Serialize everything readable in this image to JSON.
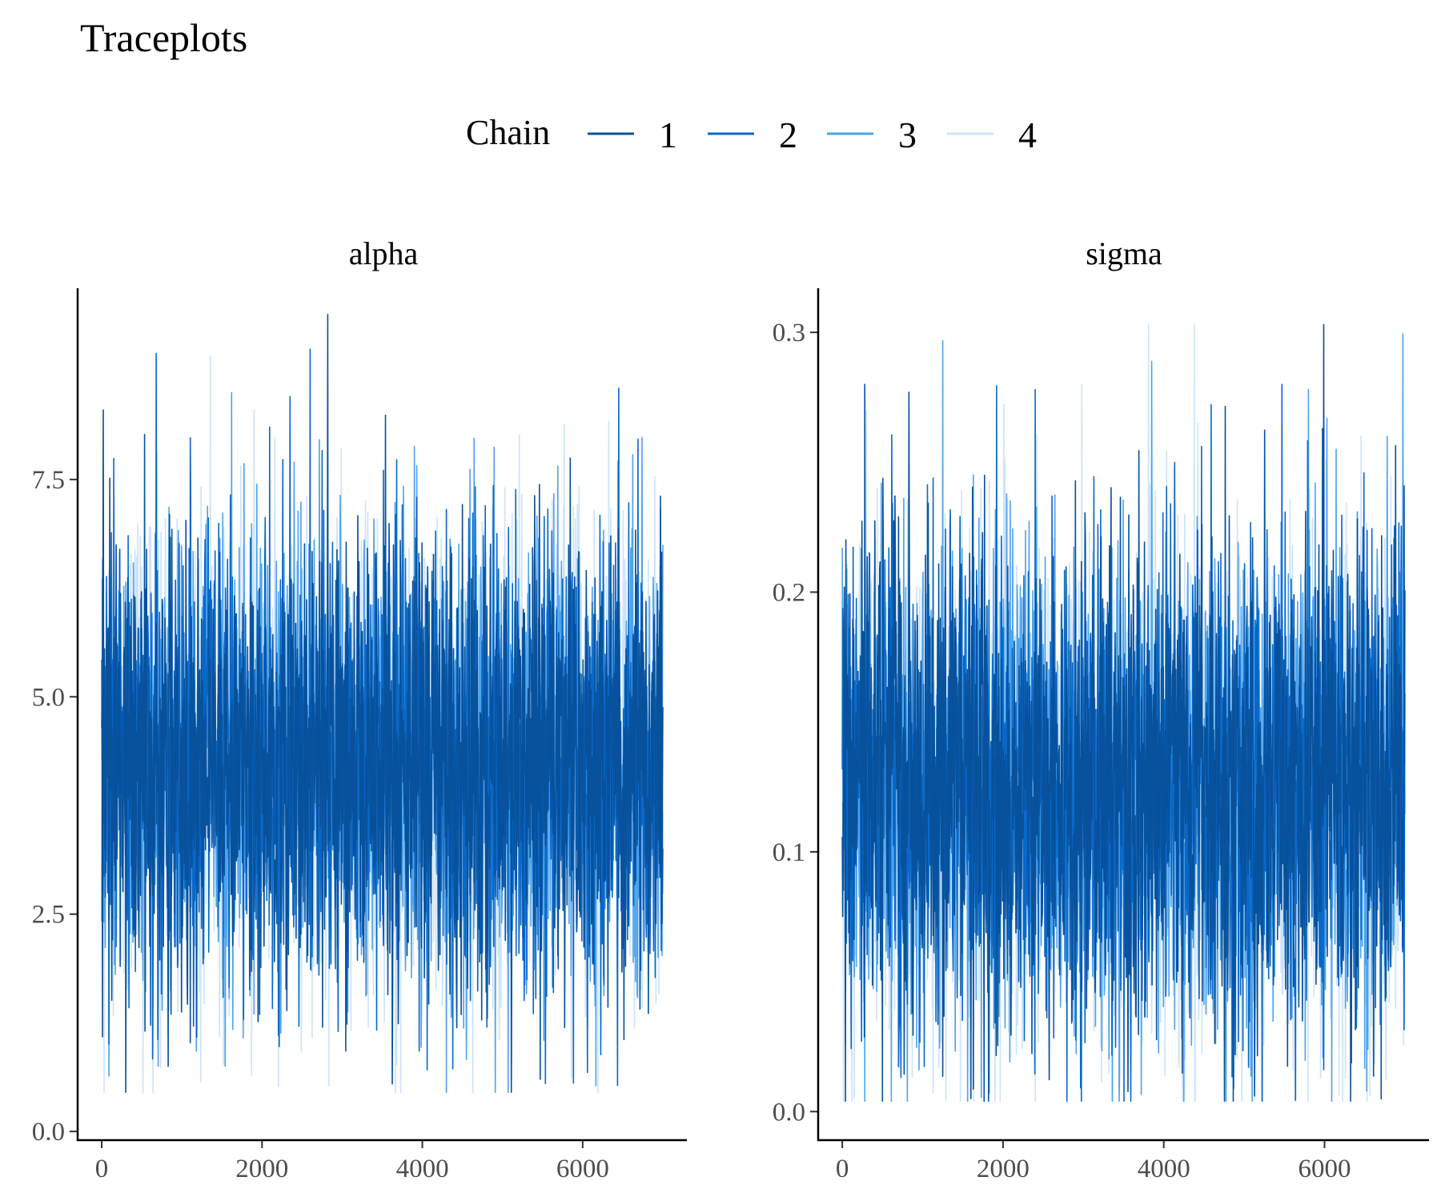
{
  "chart_data": {
    "type": "line",
    "title": "Traceplots",
    "legend": {
      "title": "Chain",
      "placement": "top",
      "entries": [
        {
          "label": "1",
          "color": "#08519c"
        },
        {
          "label": "2",
          "color": "#0868c8"
        },
        {
          "label": "3",
          "color": "#4da3ec"
        },
        {
          "label": "4",
          "color": "#cce3fa"
        }
      ]
    },
    "grid": false,
    "iterations": 7000,
    "facets": [
      {
        "name": "alpha",
        "xlim": [
          -300,
          7300
        ],
        "ylim": [
          -0.1,
          9.7
        ],
        "xticks": [
          0,
          2000,
          4000,
          6000
        ],
        "xtick_labels": [
          "0",
          "2000",
          "4000",
          "6000"
        ],
        "yticks": [
          0.0,
          2.5,
          5.0,
          7.5
        ],
        "ytick_labels": [
          "0.0",
          "2.5",
          "5.0",
          "7.5"
        ],
        "center": 4.25,
        "spread": 1.25,
        "range": [
          0.45,
          9.4
        ],
        "extremes": [
          {
            "x": 20,
            "y": 8.3,
            "chain": "1"
          },
          {
            "x": 300,
            "y": 0.45,
            "chain": "1"
          },
          {
            "x": 680,
            "y": 8.95,
            "chain": "2"
          },
          {
            "x": 2600,
            "y": 9.0,
            "chain": "2"
          },
          {
            "x": 2820,
            "y": 9.4,
            "chain": "1"
          },
          {
            "x": 1620,
            "y": 8.5,
            "chain": "3"
          },
          {
            "x": 6450,
            "y": 8.55,
            "chain": "2"
          },
          {
            "x": 5470,
            "y": 0.6,
            "chain": "1"
          },
          {
            "x": 4380,
            "y": 0.72,
            "chain": "2"
          },
          {
            "x": 5860,
            "y": 0.62,
            "chain": "4"
          },
          {
            "x": 1870,
            "y": 0.65,
            "chain": "4"
          },
          {
            "x": 830,
            "y": 0.75,
            "chain": "1"
          }
        ]
      },
      {
        "name": "sigma",
        "xlim": [
          -300,
          7300
        ],
        "ylim": [
          -0.011,
          0.317
        ],
        "xticks": [
          0,
          2000,
          4000,
          6000
        ],
        "xtick_labels": [
          "0",
          "2000",
          "4000",
          "6000"
        ],
        "yticks": [
          0.0,
          0.1,
          0.2,
          0.3
        ],
        "ytick_labels": [
          "0.0",
          "0.1",
          "0.2",
          "0.3"
        ],
        "center": 0.125,
        "spread": 0.045,
        "range": [
          0.004,
          0.303
        ],
        "extremes": [
          {
            "x": 280,
            "y": 0.28,
            "chain": "1"
          },
          {
            "x": 830,
            "y": 0.277,
            "chain": "1"
          },
          {
            "x": 40,
            "y": 0.004,
            "chain": "1"
          },
          {
            "x": 5990,
            "y": 0.303,
            "chain": "1"
          },
          {
            "x": 5470,
            "y": 0.28,
            "chain": "2"
          },
          {
            "x": 2980,
            "y": 0.28,
            "chain": "4"
          },
          {
            "x": 1600,
            "y": 0.005,
            "chain": "1"
          },
          {
            "x": 5130,
            "y": 0.006,
            "chain": "1"
          },
          {
            "x": 2400,
            "y": 0.278,
            "chain": "2"
          },
          {
            "x": 5800,
            "y": 0.278,
            "chain": "3"
          }
        ]
      }
    ]
  }
}
